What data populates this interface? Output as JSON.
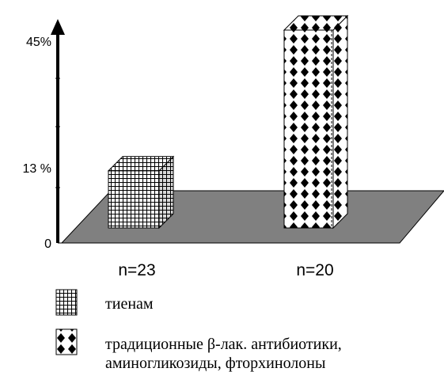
{
  "chart_data": {
    "type": "bar",
    "categories": [
      "n=23",
      "n=20"
    ],
    "values": [
      13,
      45
    ],
    "y_tick_labels": [
      "0",
      "13 %",
      "45%"
    ],
    "ylim": [
      0,
      45
    ],
    "grid": false,
    "legend_position": "bottom",
    "series": [
      {
        "name": "тиенам",
        "pattern": "grid",
        "color": "#000000"
      },
      {
        "name": "традиционные β-лак. антибиотики, аминогликозиды, фторхинолоны",
        "pattern": "diamonds",
        "color": "#000000"
      }
    ],
    "legend_lines": [
      [
        "тиенам"
      ],
      [
        "традиционные β-лак. антибиотики,",
        "аминогликозиды, фторхинолоны"
      ]
    ],
    "floor_color": "#808080"
  }
}
